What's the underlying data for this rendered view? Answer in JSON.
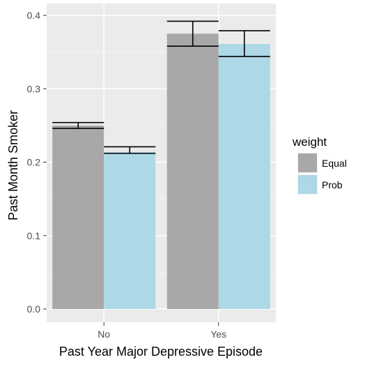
{
  "chart_data": {
    "type": "bar",
    "xlabel": "Past Year Major Depressive Episode",
    "ylabel": "Past Month Smoker",
    "categories": [
      "No",
      "Yes"
    ],
    "ylim": [
      0.0,
      0.4
    ],
    "yticks": [
      "0.0",
      "0.1",
      "0.2",
      "0.3",
      "0.4"
    ],
    "grid": true,
    "legend_position": "right",
    "legend_title": "weight",
    "series": [
      {
        "name": "Equal",
        "color": "#a8a8a8",
        "values": [
          0.25,
          0.375
        ],
        "err_low": [
          0.246,
          0.358
        ],
        "err_high": [
          0.254,
          0.392
        ]
      },
      {
        "name": "Prob",
        "color": "#add8e6",
        "values": [
          0.214,
          0.361
        ],
        "err_low": [
          0.212,
          0.344
        ],
        "err_high": [
          0.221,
          0.379
        ]
      }
    ]
  }
}
